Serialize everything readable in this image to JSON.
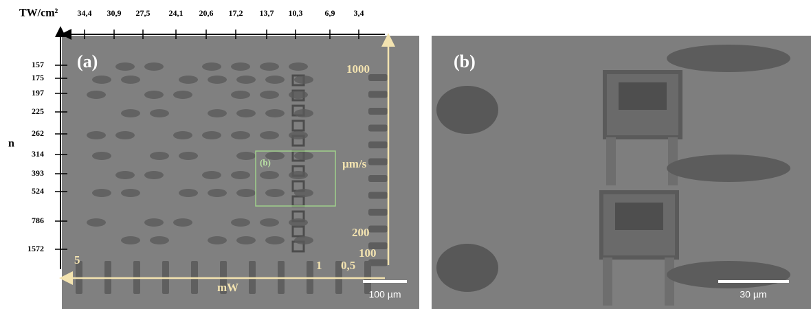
{
  "axes": {
    "top": {
      "title": "TW/cm²",
      "ticks": [
        "34,4",
        "30,9",
        "27,5",
        "24,1",
        "20,6",
        "17,2",
        "13,7",
        "10,3",
        "6,9",
        "3,4"
      ]
    },
    "left": {
      "title": "n",
      "ticks": [
        "157",
        "175",
        "197",
        "225",
        "262",
        "314",
        "393",
        "524",
        "786",
        "1572"
      ]
    }
  },
  "panel_a": {
    "label": "(a)",
    "inset_label": "(b)",
    "speed": {
      "labels": [
        "1000",
        "200",
        "100"
      ],
      "unit": "µm/s"
    },
    "power": {
      "labels": [
        "5",
        "1",
        "0,5"
      ],
      "unit": "mW"
    },
    "scale_bar": "100 µm"
  },
  "panel_b": {
    "label": "(b)",
    "scale_bar": "30 µm"
  }
}
